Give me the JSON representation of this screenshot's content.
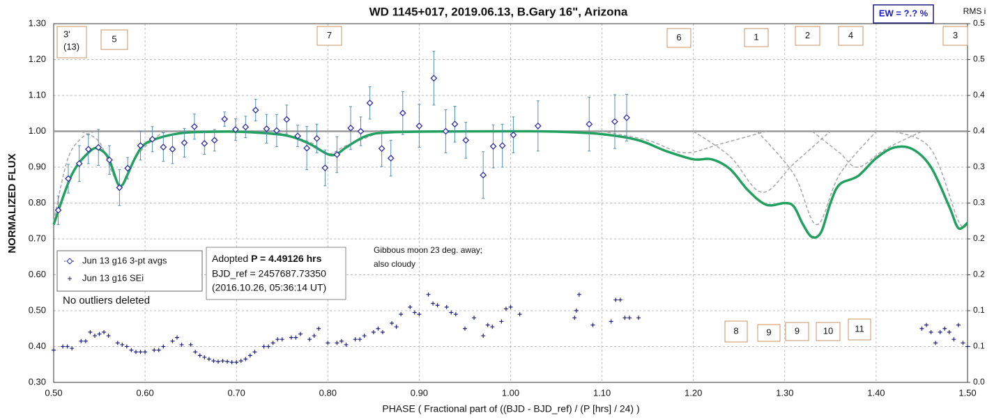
{
  "chart_data": {
    "type": "scatter",
    "title": "WD 1145+017, 2019.06.13, B.Gary 16\", Arizona",
    "ew_label": "EW =  ?.? %",
    "y2_label": "RMS i",
    "ylabel": "NORMALIZED FLUX",
    "xlabel": "PHASE ( Fractional part of ((BJD - BJD_ref) / (P [hrs] / 24) )",
    "xlim": [
      0.5,
      1.5
    ],
    "xticks": [
      {
        "value": 0.5,
        "label": "0.50"
      },
      {
        "value": 0.6,
        "label": "0.60"
      },
      {
        "value": 0.7,
        "label": "0.70"
      },
      {
        "value": 0.8,
        "label": "0.80"
      },
      {
        "value": 0.9,
        "label": "0.90"
      },
      {
        "value": 1.0,
        "label": "1.00"
      },
      {
        "value": 1.1,
        "label": "1.10"
      },
      {
        "value": 1.2,
        "label": "1.20"
      },
      {
        "value": 1.3,
        "label": "1.30"
      },
      {
        "value": 1.4,
        "label": "1.40"
      },
      {
        "value": 1.5,
        "label": "1.50"
      }
    ],
    "ylim": [
      0.3,
      1.3
    ],
    "yticks": [
      {
        "value": 0.3,
        "label": "0.30"
      },
      {
        "value": 0.4,
        "label": "0.40"
      },
      {
        "value": 0.5,
        "label": "0.50"
      },
      {
        "value": 0.6,
        "label": "0.60"
      },
      {
        "value": 0.7,
        "label": "0.70"
      },
      {
        "value": 0.8,
        "label": "0.80"
      },
      {
        "value": 0.9,
        "label": "0.90"
      },
      {
        "value": 1.0,
        "label": "1.00"
      },
      {
        "value": 1.1,
        "label": "1.10"
      },
      {
        "value": 1.2,
        "label": "1.20"
      },
      {
        "value": 1.3,
        "label": "1.30"
      }
    ],
    "y2lim": [
      0,
      0.5
    ],
    "y2ticks": [
      {
        "value": 0,
        "label": "0.0"
      },
      {
        "value": 0.05,
        "label": "0.1"
      },
      {
        "value": 0.1,
        "label": "0.1"
      },
      {
        "value": 0.15,
        "label": "0.2"
      },
      {
        "value": 0.2,
        "label": "0.2"
      },
      {
        "value": 0.25,
        "label": "0.3"
      },
      {
        "value": 0.3,
        "label": "0.3"
      },
      {
        "value": 0.35,
        "label": "0.4"
      },
      {
        "value": 0.4,
        "label": "0.4"
      },
      {
        "value": 0.45,
        "label": "0.5"
      },
      {
        "value": 0.5,
        "label": "0.5"
      }
    ],
    "grid": true,
    "reference_line": 1.0,
    "series": [
      {
        "name": "Jun 13 g16 3-pt avgs",
        "color": "#2b2ba8",
        "error_color": "#4f8fb8",
        "x": [
          0.505,
          0.516,
          0.528,
          0.538,
          0.549,
          0.561,
          0.572,
          0.581,
          0.595,
          0.608,
          0.62,
          0.63,
          0.643,
          0.654,
          0.665,
          0.676,
          0.687,
          0.699,
          0.71,
          0.721,
          0.733,
          0.744,
          0.755,
          0.767,
          0.777,
          0.788,
          0.797,
          0.81,
          0.825,
          0.836,
          0.846,
          0.859,
          0.869,
          0.882,
          0.9,
          0.916,
          0.929,
          0.939,
          0.951,
          0.97,
          0.981,
          0.991,
          1.003,
          1.03,
          1.086,
          1.114,
          1.127
        ],
        "values": [
          0.78,
          0.868,
          0.91,
          0.95,
          0.955,
          0.92,
          0.843,
          0.897,
          0.96,
          0.978,
          0.956,
          0.95,
          0.968,
          1.013,
          0.966,
          0.975,
          1.034,
          1.005,
          1.012,
          1.059,
          1.007,
          1.002,
          1.033,
          0.987,
          0.953,
          0.98,
          0.898,
          0.935,
          1.009,
          1.0,
          1.079,
          0.952,
          0.925,
          1.051,
          1.015,
          1.148,
          1.0,
          1.02,
          0.975,
          0.878,
          0.958,
          0.96,
          0.99,
          1.015,
          1.02,
          1.027,
          1.038
        ],
        "errors": [
          0.04,
          0.04,
          0.05,
          0.04,
          0.05,
          0.04,
          0.05,
          0.03,
          0.04,
          0.035,
          0.04,
          0.04,
          0.04,
          0.035,
          0.03,
          0.03,
          0.02,
          0.03,
          0.03,
          0.03,
          0.04,
          0.045,
          0.04,
          0.03,
          0.06,
          0.04,
          0.05,
          0.05,
          0.06,
          0.04,
          0.045,
          0.05,
          0.05,
          0.06,
          0.06,
          0.075,
          0.06,
          0.05,
          0.05,
          0.065,
          0.06,
          0.06,
          0.05,
          0.07,
          0.075,
          0.075,
          0.065
        ]
      },
      {
        "name": "Jun 13 g16 SEi",
        "color": "#1f1f7a",
        "x": [
          0.5,
          0.51,
          0.515,
          0.52,
          0.53,
          0.535,
          0.54,
          0.545,
          0.55,
          0.555,
          0.56,
          0.57,
          0.575,
          0.58,
          0.585,
          0.59,
          0.595,
          0.6,
          0.61,
          0.615,
          0.62,
          0.63,
          0.635,
          0.64,
          0.65,
          0.655,
          0.66,
          0.665,
          0.67,
          0.675,
          0.68,
          0.685,
          0.69,
          0.695,
          0.7,
          0.705,
          0.71,
          0.715,
          0.72,
          0.73,
          0.735,
          0.74,
          0.745,
          0.75,
          0.76,
          0.765,
          0.77,
          0.78,
          0.785,
          0.79,
          0.8,
          0.81,
          0.815,
          0.82,
          0.83,
          0.835,
          0.84,
          0.85,
          0.855,
          0.86,
          0.87,
          0.875,
          0.88,
          0.89,
          0.895,
          0.9,
          0.91,
          0.915,
          0.92,
          0.93,
          0.935,
          0.94,
          0.95,
          0.96,
          0.97,
          0.975,
          0.98,
          0.99,
          0.995,
          1.0,
          1.01,
          1.07,
          1.072,
          1.075,
          1.09,
          1.11,
          1.115,
          1.12,
          1.125,
          1.13,
          1.14,
          1.45,
          1.455,
          1.46,
          1.465,
          1.47,
          1.475,
          1.48,
          1.485,
          1.49,
          1.495,
          1.5
        ],
        "values": [
          0.39,
          0.4,
          0.4,
          0.395,
          0.415,
          0.415,
          0.44,
          0.43,
          0.435,
          0.44,
          0.43,
          0.41,
          0.405,
          0.4,
          0.39,
          0.385,
          0.385,
          0.385,
          0.39,
          0.39,
          0.4,
          0.415,
          0.425,
          0.405,
          0.405,
          0.385,
          0.375,
          0.37,
          0.365,
          0.36,
          0.358,
          0.36,
          0.358,
          0.356,
          0.356,
          0.36,
          0.365,
          0.375,
          0.385,
          0.4,
          0.4,
          0.41,
          0.42,
          0.42,
          0.425,
          0.425,
          0.435,
          0.42,
          0.43,
          0.45,
          0.41,
          0.41,
          0.415,
          0.405,
          0.42,
          0.42,
          0.43,
          0.44,
          0.45,
          0.44,
          0.465,
          0.455,
          0.49,
          0.51,
          0.495,
          0.49,
          0.545,
          0.52,
          0.515,
          0.51,
          0.495,
          0.49,
          0.45,
          0.48,
          0.43,
          0.46,
          0.455,
          0.47,
          0.505,
          0.51,
          0.49,
          0.48,
          0.5,
          0.545,
          0.46,
          0.47,
          0.53,
          0.53,
          0.48,
          0.48,
          0.48,
          0.45,
          0.46,
          0.44,
          0.41,
          0.44,
          0.45,
          0.44,
          0.42,
          0.46,
          0.41,
          0.4
        ]
      },
      {
        "name": "model",
        "color": "#22a060",
        "x": [
          0.5,
          0.52,
          0.54,
          0.55,
          0.56,
          0.57,
          0.575,
          0.58,
          0.59,
          0.6,
          0.62,
          0.64,
          0.66,
          0.7,
          0.74,
          0.76,
          0.78,
          0.8,
          0.81,
          0.82,
          0.84,
          0.86,
          0.9,
          1.0,
          1.05,
          1.1,
          1.14,
          1.17,
          1.2,
          1.22,
          1.24,
          1.26,
          1.28,
          1.3,
          1.31,
          1.32,
          1.33,
          1.34,
          1.35,
          1.36,
          1.38,
          1.4,
          1.42,
          1.44,
          1.46,
          1.48,
          1.49,
          1.5
        ],
        "values": [
          0.74,
          0.88,
          0.945,
          0.95,
          0.925,
          0.855,
          0.85,
          0.875,
          0.93,
          0.965,
          0.985,
          0.995,
          0.998,
          0.999,
          0.993,
          0.985,
          0.965,
          0.936,
          0.937,
          0.955,
          0.985,
          0.996,
          0.999,
          1.0,
          0.999,
          0.992,
          0.975,
          0.945,
          0.922,
          0.922,
          0.895,
          0.835,
          0.795,
          0.8,
          0.79,
          0.74,
          0.705,
          0.72,
          0.8,
          0.852,
          0.875,
          0.925,
          0.955,
          0.95,
          0.9,
          0.79,
          0.73,
          0.745
        ]
      }
    ],
    "model_components": {
      "color": "#aaaaaa",
      "curves": [
        {
          "x": [
            0.5,
            0.515,
            0.53,
            0.545
          ],
          "values": [
            0.75,
            0.92,
            0.98,
            1.0
          ]
        },
        {
          "x": [
            0.53,
            0.55,
            0.565,
            0.575,
            0.59,
            0.62
          ],
          "values": [
            1.0,
            0.97,
            0.88,
            0.85,
            0.93,
            1.0
          ]
        },
        {
          "x": [
            0.74,
            0.78,
            0.8,
            0.82,
            0.86
          ],
          "values": [
            1.0,
            0.97,
            0.937,
            0.96,
            1.0
          ]
        },
        {
          "x": [
            1.1,
            1.15,
            1.19,
            1.23,
            1.28
          ],
          "values": [
            1.0,
            0.975,
            0.94,
            0.965,
            1.0
          ]
        },
        {
          "x": [
            1.2,
            1.24,
            1.275,
            1.31,
            1.35
          ],
          "values": [
            1.0,
            0.93,
            0.83,
            0.91,
            1.0
          ]
        },
        {
          "x": [
            1.27,
            1.31,
            1.335,
            1.36,
            1.4
          ],
          "values": [
            1.0,
            0.88,
            0.74,
            0.88,
            1.0
          ]
        },
        {
          "x": [
            1.33,
            1.36,
            1.38,
            1.41,
            1.45
          ],
          "values": [
            1.0,
            0.94,
            0.9,
            0.95,
            1.0
          ]
        },
        {
          "x": [
            1.42,
            1.46,
            1.49,
            1.5
          ],
          "values": [
            1.0,
            0.95,
            0.75,
            0.74
          ]
        }
      ]
    },
    "notes": {
      "outliers": "No outliers deleted",
      "period_prefix": "Adopted ",
      "period": "P = 4.49126 hrs",
      "bjd_ref": "BJD_ref = 2457687.73350",
      "bjd_date": "(2016.10.26, 05:36:14 UT)",
      "moon": [
        "Gibbous moon 23 deg. away;",
        "also cloudy"
      ]
    },
    "boxes": [
      [
        "3'",
        "(13)"
      ],
      [
        "5"
      ],
      [
        "7"
      ],
      [
        "6"
      ],
      [
        "1"
      ],
      [
        "2"
      ],
      [
        "4"
      ],
      [
        "3"
      ],
      [
        "8"
      ],
      [
        "9"
      ],
      [
        "9"
      ],
      [
        "10"
      ],
      [
        "11"
      ]
    ]
  }
}
